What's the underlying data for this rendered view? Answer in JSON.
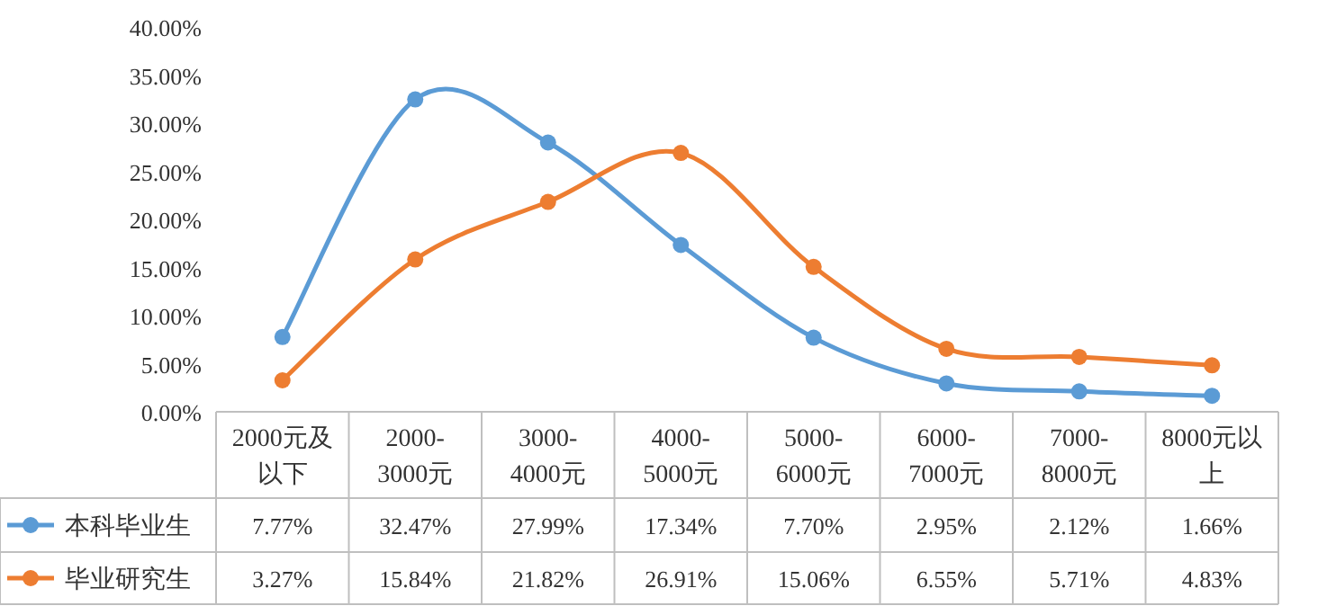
{
  "chart_data": {
    "type": "line",
    "categories": [
      "2000元及以下",
      "2000-3000元",
      "3000-4000元",
      "4000-5000元",
      "5000-6000元",
      "6000-7000元",
      "7000-8000元",
      "8000元以上"
    ],
    "series": [
      {
        "name": "本科毕业生",
        "color": "#5b9bd5",
        "values": [
          7.77,
          32.47,
          27.99,
          17.34,
          7.7,
          2.95,
          2.12,
          1.66
        ],
        "value_labels": [
          "7.77%",
          "32.47%",
          "27.99%",
          "17.34%",
          "7.70%",
          "2.95%",
          "2.12%",
          "1.66%"
        ]
      },
      {
        "name": "毕业研究生",
        "color": "#ed7d31",
        "values": [
          3.27,
          15.84,
          21.82,
          26.91,
          15.06,
          6.55,
          5.71,
          4.83
        ],
        "value_labels": [
          "3.27%",
          "15.84%",
          "21.82%",
          "26.91%",
          "15.06%",
          "6.55%",
          "5.71%",
          "4.83%"
        ]
      }
    ],
    "ylim": [
      0,
      40
    ],
    "yticks": [
      {
        "value": 0,
        "label": "0.00%"
      },
      {
        "value": 5,
        "label": "5.00%"
      },
      {
        "value": 10,
        "label": "10.00%"
      },
      {
        "value": 15,
        "label": "15.00%"
      },
      {
        "value": 20,
        "label": "20.00%"
      },
      {
        "value": 25,
        "label": "25.00%"
      },
      {
        "value": 30,
        "label": "30.00%"
      },
      {
        "value": 35,
        "label": "35.00%"
      },
      {
        "value": 40,
        "label": "40.00%"
      }
    ],
    "marker": "circle",
    "line_style": "solid",
    "grid": false,
    "legend": "bottom left"
  }
}
